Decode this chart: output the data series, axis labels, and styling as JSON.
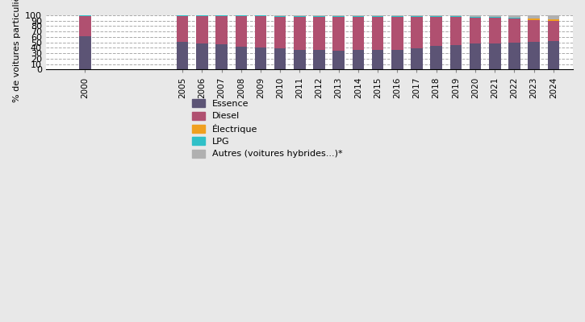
{
  "years": [
    2000,
    2005,
    2006,
    2007,
    2008,
    2009,
    2010,
    2011,
    2012,
    2013,
    2014,
    2015,
    2016,
    2017,
    2018,
    2019,
    2020,
    2021,
    2022,
    2023,
    2024
  ],
  "essence": [
    61.0,
    51.5,
    48.5,
    46.0,
    42.5,
    40.5,
    39.0,
    37.0,
    36.0,
    35.5,
    36.0,
    36.5,
    37.0,
    39.0,
    43.0,
    45.5,
    47.5,
    48.5,
    50.0,
    51.5,
    52.0
  ],
  "diesel": [
    37.5,
    46.5,
    49.5,
    52.0,
    55.5,
    57.5,
    58.5,
    60.5,
    61.5,
    62.0,
    61.5,
    61.0,
    60.5,
    58.5,
    54.0,
    51.0,
    48.5,
    47.5,
    44.0,
    40.0,
    37.5
  ],
  "electrique": [
    0.0,
    0.0,
    0.0,
    0.0,
    0.0,
    0.0,
    0.0,
    0.0,
    0.0,
    0.0,
    0.0,
    0.0,
    0.0,
    0.0,
    0.0,
    0.0,
    0.0,
    0.0,
    0.5,
    2.0,
    2.5
  ],
  "lpg": [
    1.0,
    1.5,
    1.5,
    1.5,
    1.5,
    1.5,
    1.5,
    1.5,
    1.5,
    1.5,
    1.5,
    1.5,
    1.5,
    1.5,
    1.5,
    1.5,
    1.5,
    1.0,
    1.0,
    1.0,
    0.5
  ],
  "autres": [
    0.5,
    0.5,
    0.5,
    0.5,
    0.5,
    0.5,
    0.5,
    1.0,
    1.0,
    1.0,
    1.0,
    1.0,
    1.0,
    1.0,
    1.5,
    2.0,
    2.5,
    3.0,
    4.5,
    5.5,
    7.5
  ],
  "color_essence": "#5c5475",
  "color_diesel": "#b05070",
  "color_electrique": "#f0a020",
  "color_lpg": "#30c0c8",
  "color_autres": "#b0b0b0",
  "ylabel": "% de voitures particulières",
  "ylim": [
    0,
    100
  ],
  "background_color": "#e8e8e8",
  "plot_background": "#ffffff",
  "legend_labels": [
    "Essence",
    "Diesel",
    "Électrique",
    "LPG",
    "Autres (voitures hybrides...)*"
  ]
}
